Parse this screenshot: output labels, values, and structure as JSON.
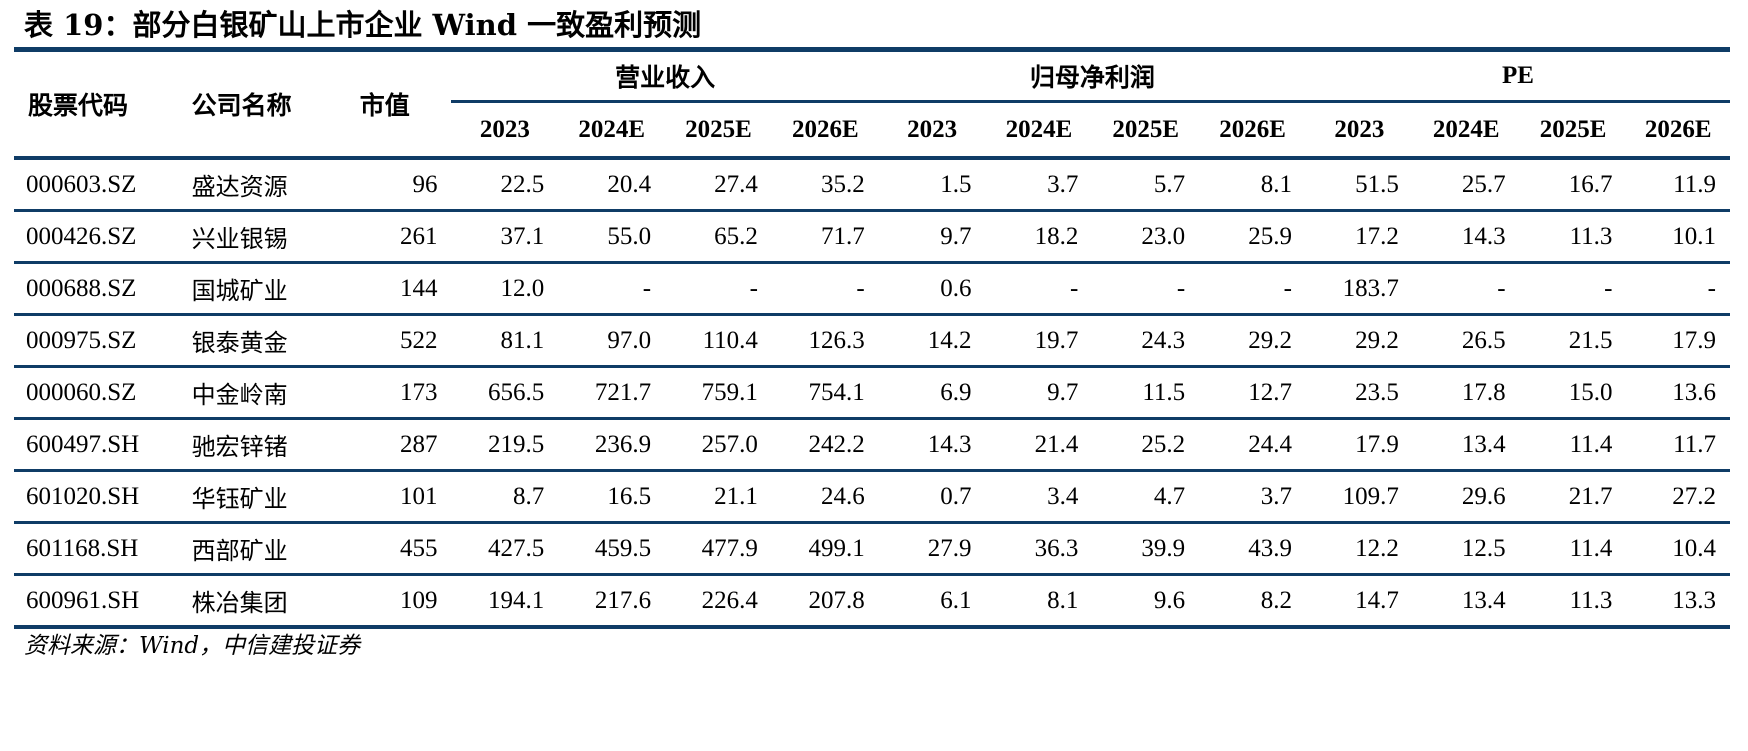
{
  "title": "表 19：部分白银矿山上市企业 Wind 一致盈利预测",
  "header": {
    "code": "股票代码",
    "name": "公司名称",
    "market_cap": "市值",
    "groups": [
      "营业收入",
      "归母净利润",
      "PE"
    ],
    "years": [
      "2023",
      "2024E",
      "2025E",
      "2026E",
      "2023",
      "2024E",
      "2025E",
      "2026E",
      "2023",
      "2024E",
      "2025E",
      "2026E"
    ]
  },
  "rows": [
    {
      "code": "000603.SZ",
      "name": "盛达资源",
      "cap": "96",
      "values": [
        "22.5",
        "20.4",
        "27.4",
        "35.2",
        "1.5",
        "3.7",
        "5.7",
        "8.1",
        "51.5",
        "25.7",
        "16.7",
        "11.9"
      ]
    },
    {
      "code": "000426.SZ",
      "name": "兴业银锡",
      "cap": "261",
      "values": [
        "37.1",
        "55.0",
        "65.2",
        "71.7",
        "9.7",
        "18.2",
        "23.0",
        "25.9",
        "17.2",
        "14.3",
        "11.3",
        "10.1"
      ]
    },
    {
      "code": "000688.SZ",
      "name": "国城矿业",
      "cap": "144",
      "values": [
        "12.0",
        "-",
        "-",
        "-",
        "0.6",
        "-",
        "-",
        "-",
        "183.7",
        "-",
        "-",
        "-"
      ]
    },
    {
      "code": "000975.SZ",
      "name": "银泰黄金",
      "cap": "522",
      "values": [
        "81.1",
        "97.0",
        "110.4",
        "126.3",
        "14.2",
        "19.7",
        "24.3",
        "29.2",
        "29.2",
        "26.5",
        "21.5",
        "17.9"
      ]
    },
    {
      "code": "000060.SZ",
      "name": "中金岭南",
      "cap": "173",
      "values": [
        "656.5",
        "721.7",
        "759.1",
        "754.1",
        "6.9",
        "9.7",
        "11.5",
        "12.7",
        "23.5",
        "17.8",
        "15.0",
        "13.6"
      ]
    },
    {
      "code": "600497.SH",
      "name": "驰宏锌锗",
      "cap": "287",
      "values": [
        "219.5",
        "236.9",
        "257.0",
        "242.2",
        "14.3",
        "21.4",
        "25.2",
        "24.4",
        "17.9",
        "13.4",
        "11.4",
        "11.7"
      ]
    },
    {
      "code": "601020.SH",
      "name": "华钰矿业",
      "cap": "101",
      "values": [
        "8.7",
        "16.5",
        "21.1",
        "24.6",
        "0.7",
        "3.4",
        "4.7",
        "3.7",
        "109.7",
        "29.6",
        "21.7",
        "27.2"
      ]
    },
    {
      "code": "601168.SH",
      "name": "西部矿业",
      "cap": "455",
      "values": [
        "427.5",
        "459.5",
        "477.9",
        "499.1",
        "27.9",
        "36.3",
        "39.9",
        "43.9",
        "12.2",
        "12.5",
        "11.4",
        "10.4"
      ]
    },
    {
      "code": "600961.SH",
      "name": "株冶集团",
      "cap": "109",
      "values": [
        "194.1",
        "217.6",
        "226.4",
        "207.8",
        "6.1",
        "8.1",
        "9.6",
        "8.2",
        "14.7",
        "13.4",
        "11.3",
        "13.3"
      ]
    }
  ],
  "source": "资料来源：Wind，中信建投证券",
  "colors": {
    "rule": "#0f3c66"
  }
}
